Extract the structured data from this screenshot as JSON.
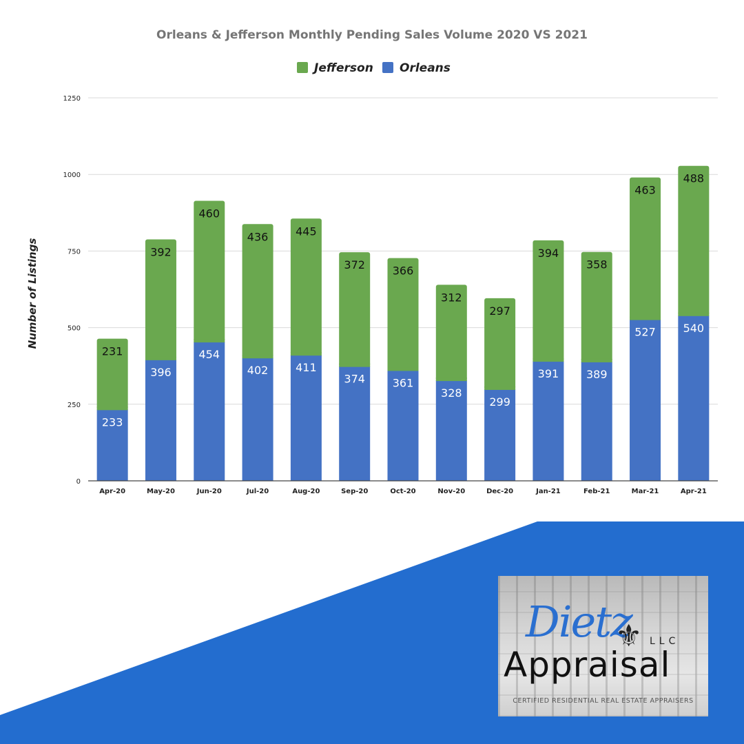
{
  "colors": {
    "orleans": "#4472c4",
    "jefferson": "#6aa84f",
    "banner": "#236dcf",
    "grid": "#d9d9d9",
    "axis": "#444444"
  },
  "logo": {
    "script": "Dietz",
    "llc": "LLC",
    "word": "Appraisal",
    "tagline": "CERTIFIED RESIDENTIAL REAL ESTATE APPRAISERS"
  },
  "chart_data": {
    "type": "bar",
    "stacked": true,
    "title": "Orleans & Jefferson  Monthly Pending Sales Volume 2020 VS 2021",
    "ylabel": "Number of Listings",
    "xlabel": "",
    "ylim": [
      0,
      1250
    ],
    "yticks": [
      0,
      250,
      500,
      750,
      1000,
      1250
    ],
    "grid": true,
    "legend_position": "top-center",
    "categories": [
      "Apr-20",
      "May-20",
      "Jun-20",
      "Jul-20",
      "Aug-20",
      "Sep-20",
      "Oct-20",
      "Nov-20",
      "Dec-20",
      "Jan-21",
      "Feb-21",
      "Mar-21",
      "Apr-21"
    ],
    "series": [
      {
        "name": "Orleans",
        "values": [
          233,
          396,
          454,
          402,
          411,
          374,
          361,
          328,
          299,
          391,
          389,
          527,
          540
        ]
      },
      {
        "name": "Jefferson",
        "values": [
          231,
          392,
          460,
          436,
          445,
          372,
          366,
          312,
          297,
          394,
          358,
          463,
          488
        ]
      }
    ],
    "legend": [
      "Jefferson",
      "Orleans"
    ]
  }
}
